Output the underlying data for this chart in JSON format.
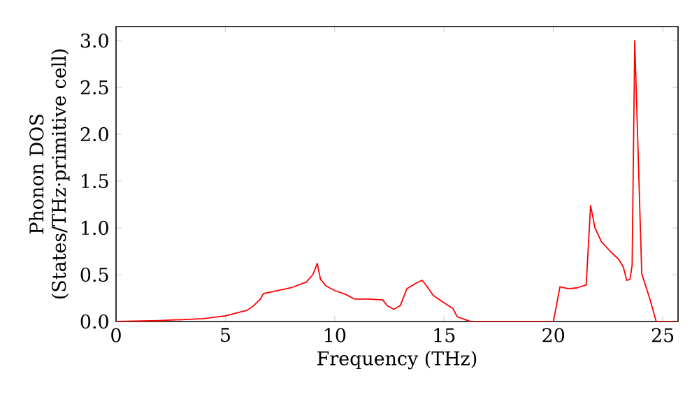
{
  "chart_data": {
    "type": "line",
    "xlabel": "Frequency (THz)",
    "ylabel": "Phonon DOS (States/THz·primitive cell)",
    "xlim": [
      0,
      25.7
    ],
    "ylim": [
      0,
      3.15
    ],
    "xticks": [
      0,
      5,
      10,
      15,
      20,
      25
    ],
    "yticks": [
      {
        "value": 0,
        "label": "0.0"
      },
      {
        "value": 0.5,
        "label": "0.5"
      },
      {
        "value": 1,
        "label": "1.0"
      },
      {
        "value": 1.5,
        "label": "1.5"
      },
      {
        "value": 2,
        "label": "2.0"
      },
      {
        "value": 2.5,
        "label": "2.5"
      },
      {
        "value": 3,
        "label": "3.0"
      }
    ],
    "grid": false,
    "marker": "none",
    "line_style": "solid",
    "series": [
      {
        "color": "#ff0000",
        "x": [
          0,
          2,
          3,
          4,
          5,
          6,
          6.3,
          6.6,
          6.75,
          7,
          8,
          8.7,
          9.0,
          9.2,
          9.35,
          9.6,
          10,
          10.5,
          10.9,
          11.5,
          12.2,
          12.4,
          12.7,
          13.0,
          13.3,
          13.8,
          14.0,
          14.2,
          14.5,
          15.0,
          15.4,
          15.6,
          16.2,
          20.0,
          20.3,
          20.7,
          21.1,
          21.5,
          21.7,
          21.9,
          22.2,
          22.6,
          23.0,
          23.2,
          23.35,
          23.5,
          23.6,
          23.72,
          24.04,
          24.4,
          24.7,
          25.7
        ],
        "values": [
          0,
          0.01,
          0.02,
          0.03,
          0.06,
          0.12,
          0.17,
          0.24,
          0.3,
          0.31,
          0.36,
          0.42,
          0.5,
          0.62,
          0.45,
          0.38,
          0.33,
          0.29,
          0.24,
          0.24,
          0.23,
          0.17,
          0.13,
          0.17,
          0.35,
          0.42,
          0.44,
          0.38,
          0.28,
          0.2,
          0.14,
          0.05,
          0,
          0,
          0.37,
          0.35,
          0.36,
          0.39,
          1.24,
          1.0,
          0.85,
          0.75,
          0.66,
          0.58,
          0.44,
          0.45,
          0.6,
          3.0,
          0.51,
          0.25,
          0,
          0
        ]
      }
    ]
  }
}
